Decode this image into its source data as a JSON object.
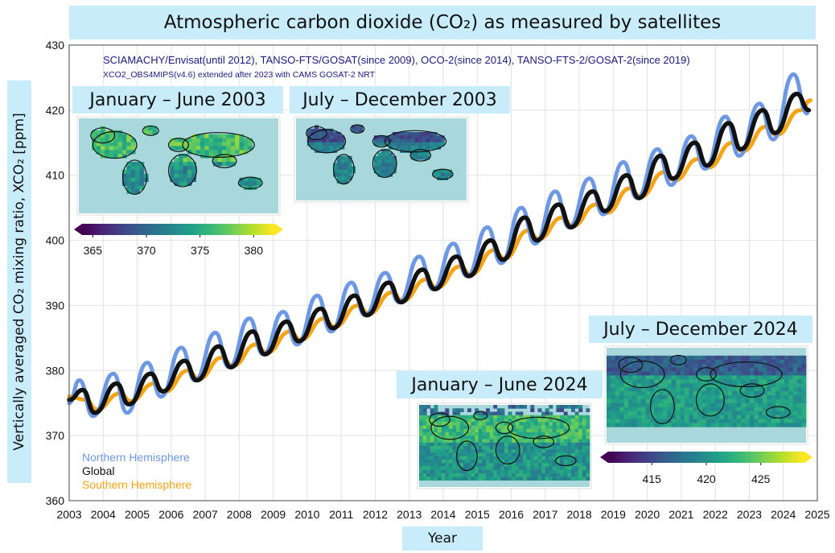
{
  "title": "Atmospheric carbon dioxide (CO₂) as measured by satellites",
  "ylabel": "Vertically averaged CO₂ mixing ratio, XCO₂ [ppm]",
  "xlabel": "Year",
  "annotation_line1": "SCIAMACHY/Envisat(until 2012), TANSO-FTS/GOSAT(since 2009), OCO-2(since 2014), TANSO-FTS-2/GOSAT-2(since 2019)",
  "annotation_line2": "XCO2_OBS4MIPS(v4.6) extended after 2023 with CAMS GOSAT-2 NRT",
  "maps": [
    {
      "title": "January – June 2003"
    },
    {
      "title": "July – December 2003"
    },
    {
      "title": "January – June 2024"
    },
    {
      "title": "July – December 2024"
    }
  ],
  "colorbars": [
    {
      "ticks": [
        "365",
        "370",
        "375",
        "380"
      ],
      "min": 364,
      "max": 382
    },
    {
      "ticks": [
        "415",
        "420",
        "425"
      ],
      "min": 411,
      "max": 429
    }
  ],
  "colors": {
    "north": "#6d98e6",
    "global": "#111111",
    "south": "#f5a416",
    "panel": "#c9ecfa",
    "annotation": "#1a1a80"
  },
  "chart_data": {
    "type": "line",
    "xlim": [
      2003,
      2025
    ],
    "ylim": [
      360,
      430
    ],
    "grid": true,
    "legend_position": "bottom-left",
    "x_ticks": [
      "2003",
      "2004",
      "2005",
      "2006",
      "2007",
      "2008",
      "2009",
      "2010",
      "2011",
      "2012",
      "2013",
      "2014",
      "2015",
      "2016",
      "2017",
      "2018",
      "2019",
      "2020",
      "2021",
      "2022",
      "2023",
      "2024",
      "2025"
    ],
    "y_ticks": [
      "360",
      "370",
      "380",
      "390",
      "400",
      "410",
      "420",
      "430"
    ],
    "series": [
      {
        "name": "Northern Hemisphere",
        "x": [
          2003.3,
          2003.7,
          2004.3,
          2004.7,
          2005.3,
          2005.7,
          2006.3,
          2006.7,
          2007.3,
          2007.7,
          2008.3,
          2008.7,
          2009.3,
          2009.7,
          2010.3,
          2010.7,
          2011.3,
          2011.7,
          2012.3,
          2012.7,
          2013.3,
          2013.7,
          2014.3,
          2014.7,
          2015.3,
          2015.7,
          2016.3,
          2016.7,
          2017.3,
          2017.7,
          2018.3,
          2018.7,
          2019.3,
          2019.7,
          2020.3,
          2020.7,
          2021.3,
          2021.7,
          2022.3,
          2022.7,
          2023.3,
          2023.7,
          2024.3,
          2024.7
        ],
        "values": [
          378.5,
          373,
          379.5,
          373.5,
          381.2,
          376,
          383.5,
          378.5,
          385.8,
          380.5,
          388,
          382.5,
          389,
          384,
          391.5,
          386,
          393.5,
          388.5,
          395,
          390.5,
          397.5,
          392.5,
          399.5,
          394.5,
          402,
          396.5,
          405,
          399.5,
          407.5,
          402,
          409.5,
          404,
          412,
          406.5,
          414,
          408.5,
          416,
          411,
          419,
          413,
          421,
          415.5,
          425.5,
          419.5
        ]
      },
      {
        "name": "Global",
        "x": [
          2003.4,
          2003.75,
          2004.4,
          2004.75,
          2005.4,
          2005.75,
          2006.4,
          2006.75,
          2007.4,
          2007.75,
          2008.4,
          2008.75,
          2009.4,
          2009.75,
          2010.4,
          2010.75,
          2011.4,
          2011.75,
          2012.4,
          2012.75,
          2013.4,
          2013.75,
          2014.4,
          2014.75,
          2015.4,
          2015.75,
          2016.4,
          2016.75,
          2017.4,
          2017.75,
          2018.4,
          2018.75,
          2019.4,
          2019.75,
          2020.4,
          2020.75,
          2021.4,
          2021.75,
          2022.4,
          2022.75,
          2023.4,
          2023.75,
          2024.4,
          2024.75
        ],
        "values": [
          377,
          373.5,
          378,
          374.8,
          379.5,
          376.8,
          381.5,
          378.5,
          383.7,
          380.5,
          386,
          382.5,
          387.5,
          384.5,
          389.5,
          386.5,
          391.5,
          388.5,
          393.5,
          390.5,
          395.5,
          392.5,
          397.5,
          394.5,
          400,
          397,
          403.5,
          400,
          405.5,
          402,
          407.5,
          404.5,
          410,
          406.5,
          413,
          409.5,
          415,
          411.5,
          418,
          414,
          420,
          416.5,
          422.5,
          420
        ]
      },
      {
        "name": "Southern Hemisphere",
        "x": [
          2003.5,
          2003.8,
          2004.5,
          2004.8,
          2005.5,
          2005.8,
          2006.5,
          2006.8,
          2007.5,
          2007.8,
          2008.5,
          2008.8,
          2009.5,
          2009.8,
          2010.5,
          2010.8,
          2011.5,
          2011.8,
          2012.5,
          2012.8,
          2013.5,
          2013.8,
          2014.5,
          2014.8,
          2015.5,
          2015.8,
          2016.5,
          2016.8,
          2017.5,
          2017.8,
          2018.5,
          2018.8,
          2019.5,
          2019.8,
          2020.5,
          2020.8,
          2021.5,
          2021.8,
          2022.5,
          2022.8,
          2023.5,
          2023.8,
          2024.5,
          2024.8
        ],
        "values": [
          375.5,
          374,
          376.5,
          375.3,
          378,
          376.7,
          380,
          378.7,
          382,
          380.7,
          384,
          382.7,
          386,
          384.7,
          388,
          386.7,
          390,
          388.7,
          392,
          390.7,
          394,
          392.7,
          396,
          394.7,
          398.5,
          397.2,
          401.5,
          400.2,
          403.5,
          402.2,
          405.5,
          404.2,
          408,
          406.7,
          410.5,
          409.2,
          412.5,
          411.2,
          415,
          413.7,
          417.5,
          416.2,
          420,
          421.5
        ]
      }
    ]
  }
}
